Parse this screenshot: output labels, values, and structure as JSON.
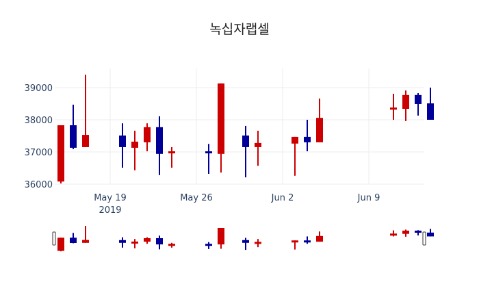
{
  "title": "녹십자랩셀",
  "colors": {
    "increasing": "#cc0000",
    "decreasing": "#000099",
    "grid": "#eeeeee",
    "text": "#2a3f5f"
  },
  "chart_data": {
    "type": "candlestick",
    "title": "녹십자랩셀",
    "xlabel": "",
    "ylabel": "",
    "ylim": [
      35950,
      39650
    ],
    "yticks": [
      36000,
      37000,
      38000,
      39000
    ],
    "xticks": [
      {
        "date": "2019-05-19",
        "label": "May 19",
        "sublabel": "2019"
      },
      {
        "date": "2019-05-26",
        "label": "May 26",
        "sublabel": ""
      },
      {
        "date": "2019-06-02",
        "label": "Jun 2",
        "sublabel": ""
      },
      {
        "date": "2019-06-09",
        "label": "Jun 9",
        "sublabel": ""
      }
    ],
    "grid": true,
    "rangeslider": true,
    "candles": [
      {
        "date": "2019-05-15",
        "open": 36080,
        "high": 37830,
        "low": 36020,
        "close": 37830
      },
      {
        "date": "2019-05-16",
        "open": 37830,
        "high": 38470,
        "low": 37090,
        "close": 37130
      },
      {
        "date": "2019-05-17",
        "open": 37150,
        "high": 39400,
        "low": 37150,
        "close": 37530
      },
      {
        "date": "2019-05-20",
        "open": 37510,
        "high": 37890,
        "low": 36510,
        "close": 37150
      },
      {
        "date": "2019-05-21",
        "open": 37130,
        "high": 37660,
        "low": 36430,
        "close": 37320
      },
      {
        "date": "2019-05-22",
        "open": 37300,
        "high": 37890,
        "low": 37020,
        "close": 37770
      },
      {
        "date": "2019-05-23",
        "open": 37770,
        "high": 38110,
        "low": 36280,
        "close": 36940
      },
      {
        "date": "2019-05-24",
        "open": 36960,
        "high": 37150,
        "low": 36510,
        "close": 37020
      },
      {
        "date": "2019-05-27",
        "open": 37020,
        "high": 37250,
        "low": 36320,
        "close": 36960
      },
      {
        "date": "2019-05-28",
        "open": 36940,
        "high": 39130,
        "low": 36360,
        "close": 39130
      },
      {
        "date": "2019-05-30",
        "open": 37510,
        "high": 37810,
        "low": 36210,
        "close": 37150
      },
      {
        "date": "2019-05-31",
        "open": 37150,
        "high": 37660,
        "low": 36570,
        "close": 37280
      },
      {
        "date": "2019-06-03",
        "open": 37260,
        "high": 37470,
        "low": 36260,
        "close": 37470
      },
      {
        "date": "2019-06-04",
        "open": 37470,
        "high": 38000,
        "low": 37020,
        "close": 37300
      },
      {
        "date": "2019-06-05",
        "open": 37300,
        "high": 38660,
        "low": 37300,
        "close": 38060
      },
      {
        "date": "2019-06-11",
        "open": 38320,
        "high": 38810,
        "low": 38000,
        "close": 38380
      },
      {
        "date": "2019-06-12",
        "open": 38340,
        "high": 38910,
        "low": 37960,
        "close": 38770
      },
      {
        "date": "2019-06-13",
        "open": 38770,
        "high": 38830,
        "low": 38130,
        "close": 38490
      },
      {
        "date": "2019-06-14",
        "open": 38510,
        "high": 39000,
        "low": 38000,
        "close": 38000
      }
    ]
  }
}
